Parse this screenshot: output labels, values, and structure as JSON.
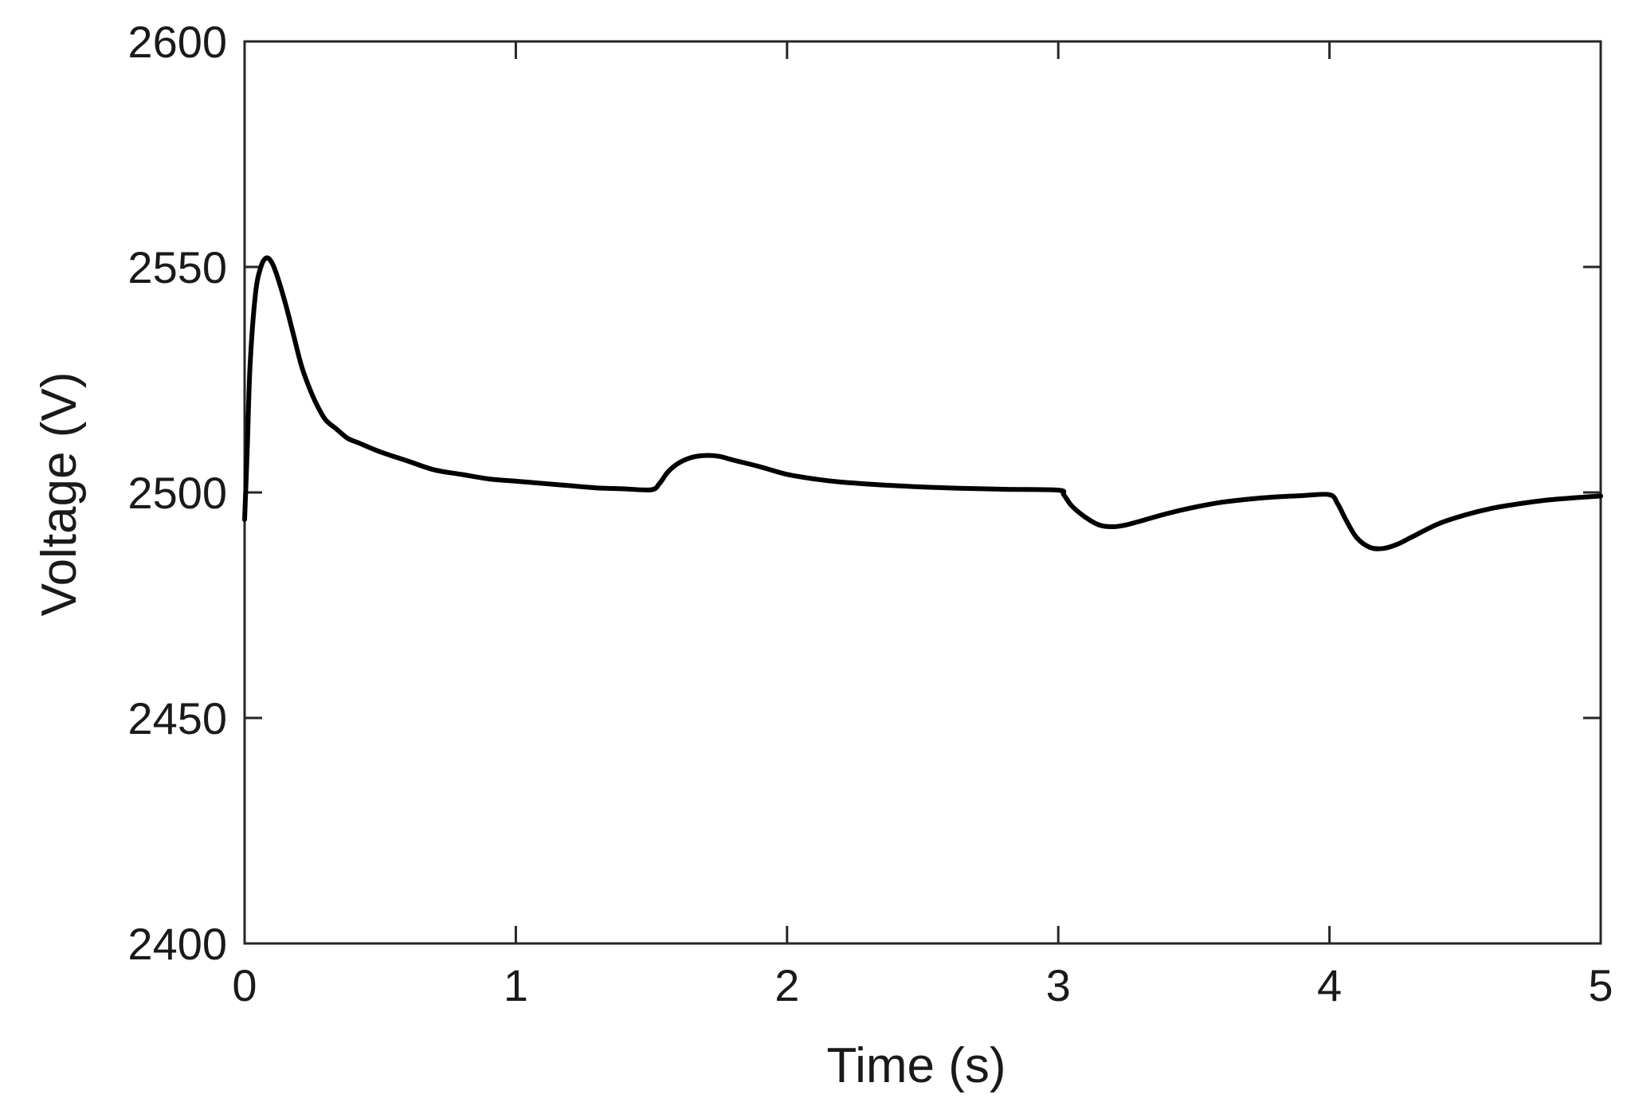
{
  "chart_data": {
    "type": "line",
    "title": "",
    "xlabel": "Time (s)",
    "ylabel": "Voltage (V)",
    "xlim": [
      0,
      5
    ],
    "ylim": [
      2400,
      2600
    ],
    "xticks": [
      0,
      1,
      2,
      3,
      4,
      5
    ],
    "yticks": [
      2400,
      2450,
      2500,
      2550,
      2600
    ],
    "xtick_labels": [
      "0",
      "1",
      "2",
      "3",
      "4",
      "5"
    ],
    "ytick_labels": [
      "2400",
      "2450",
      "2500",
      "2550",
      "2600"
    ],
    "grid": false,
    "legend": "none",
    "line_color": "#000000",
    "series": [
      {
        "x": [
          0,
          0.01,
          0.02,
          0.04,
          0.06,
          0.08,
          0.1,
          0.12,
          0.15,
          0.18,
          0.21,
          0.24,
          0.27,
          0.3,
          0.34,
          0.38,
          0.42,
          0.5,
          0.6,
          0.7,
          0.8,
          0.9,
          1.0,
          1.1,
          1.2,
          1.3,
          1.4,
          1.5,
          1.53,
          1.56,
          1.6,
          1.65,
          1.7,
          1.75,
          1.8,
          1.9,
          2.0,
          2.1,
          2.2,
          2.4,
          2.6,
          2.8,
          3.0,
          3.02,
          3.05,
          3.1,
          3.15,
          3.2,
          3.25,
          3.3,
          3.4,
          3.5,
          3.6,
          3.7,
          3.8,
          3.9,
          4.0,
          4.03,
          4.06,
          4.1,
          4.15,
          4.2,
          4.25,
          4.3,
          4.4,
          4.5,
          4.6,
          4.7,
          4.8,
          4.9,
          5.0
        ],
        "y": [
          2494,
          2510,
          2528,
          2544,
          2550,
          2552,
          2551,
          2548,
          2542,
          2535,
          2528,
          2523,
          2519,
          2516,
          2514,
          2512,
          2511,
          2509,
          2507,
          2505,
          2504,
          2503,
          2502.5,
          2502,
          2501.5,
          2501,
          2500.8,
          2500.6,
          2502,
          2504.5,
          2506.5,
          2507.8,
          2508.2,
          2508,
          2507.2,
          2505.7,
          2504,
          2503,
          2502.3,
          2501.5,
          2501,
          2500.7,
          2500.5,
          2499.5,
          2497,
          2494.5,
          2492.8,
          2492.4,
          2492.8,
          2493.6,
          2495.3,
          2496.7,
          2497.8,
          2498.5,
          2499,
          2499.3,
          2499.5,
          2497.5,
          2494,
          2490,
          2487.8,
          2487.6,
          2488.5,
          2490,
          2493,
          2495,
          2496.5,
          2497.5,
          2498.3,
          2498.8,
          2499.2
        ]
      }
    ]
  }
}
